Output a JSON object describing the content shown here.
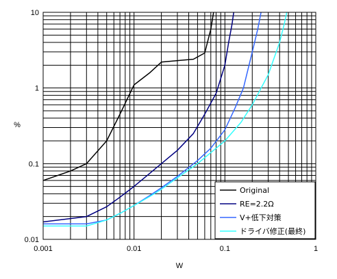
{
  "chart_data": {
    "type": "line",
    "title": "",
    "xlabel": "W",
    "ylabel": "%",
    "x_scale": "log",
    "y_scale": "log",
    "xlim": [
      0.001,
      1
    ],
    "ylim": [
      0.01,
      10
    ],
    "x_ticks": [
      {
        "value": 0.001,
        "label": "0.001"
      },
      {
        "value": 0.01,
        "label": "0.01"
      },
      {
        "value": 0.1,
        "label": "0.1"
      },
      {
        "value": 1,
        "label": "1"
      }
    ],
    "y_ticks": [
      {
        "value": 0.01,
        "label": "0.01"
      },
      {
        "value": 0.1,
        "label": "0.1"
      },
      {
        "value": 1,
        "label": "1"
      },
      {
        "value": 10,
        "label": "10"
      }
    ],
    "grid": true,
    "legend_position": "bottom-right",
    "series": [
      {
        "name": "Original",
        "color": "#000000",
        "points": [
          [
            0.001,
            0.06
          ],
          [
            0.002,
            0.08
          ],
          [
            0.003,
            0.1
          ],
          [
            0.005,
            0.2
          ],
          [
            0.007,
            0.45
          ],
          [
            0.01,
            1.1
          ],
          [
            0.015,
            1.6
          ],
          [
            0.02,
            2.2
          ],
          [
            0.03,
            2.3
          ],
          [
            0.045,
            2.4
          ],
          [
            0.06,
            2.9
          ],
          [
            0.07,
            6.0
          ],
          [
            0.075,
            10.0
          ]
        ]
      },
      {
        "name": "RE=2.2Ω",
        "color": "#000080",
        "points": [
          [
            0.001,
            0.017
          ],
          [
            0.003,
            0.02
          ],
          [
            0.005,
            0.027
          ],
          [
            0.007,
            0.036
          ],
          [
            0.01,
            0.05
          ],
          [
            0.015,
            0.075
          ],
          [
            0.02,
            0.1
          ],
          [
            0.03,
            0.15
          ],
          [
            0.045,
            0.25
          ],
          [
            0.06,
            0.45
          ],
          [
            0.08,
            0.85
          ],
          [
            0.1,
            2.0
          ],
          [
            0.11,
            4.0
          ],
          [
            0.12,
            7.0
          ],
          [
            0.125,
            10.0
          ]
        ]
      },
      {
        "name": "V+低下対策",
        "color": "#3366ff",
        "points": [
          [
            0.001,
            0.016
          ],
          [
            0.003,
            0.016
          ],
          [
            0.005,
            0.018
          ],
          [
            0.007,
            0.022
          ],
          [
            0.01,
            0.028
          ],
          [
            0.015,
            0.038
          ],
          [
            0.02,
            0.048
          ],
          [
            0.03,
            0.068
          ],
          [
            0.05,
            0.11
          ],
          [
            0.07,
            0.16
          ],
          [
            0.1,
            0.28
          ],
          [
            0.13,
            0.55
          ],
          [
            0.16,
            1.0
          ],
          [
            0.2,
            3.0
          ],
          [
            0.23,
            6.0
          ],
          [
            0.25,
            10.0
          ]
        ]
      },
      {
        "name": "ドライバ修正(最終)",
        "color": "#33ffff",
        "points": [
          [
            0.001,
            0.015
          ],
          [
            0.003,
            0.015
          ],
          [
            0.005,
            0.018
          ],
          [
            0.007,
            0.022
          ],
          [
            0.01,
            0.028
          ],
          [
            0.015,
            0.037
          ],
          [
            0.02,
            0.046
          ],
          [
            0.03,
            0.065
          ],
          [
            0.05,
            0.1
          ],
          [
            0.07,
            0.14
          ],
          [
            0.1,
            0.2
          ],
          [
            0.15,
            0.35
          ],
          [
            0.2,
            0.6
          ],
          [
            0.3,
            1.5
          ],
          [
            0.4,
            4.0
          ],
          [
            0.45,
            7.0
          ],
          [
            0.48,
            10.0
          ]
        ]
      }
    ]
  }
}
